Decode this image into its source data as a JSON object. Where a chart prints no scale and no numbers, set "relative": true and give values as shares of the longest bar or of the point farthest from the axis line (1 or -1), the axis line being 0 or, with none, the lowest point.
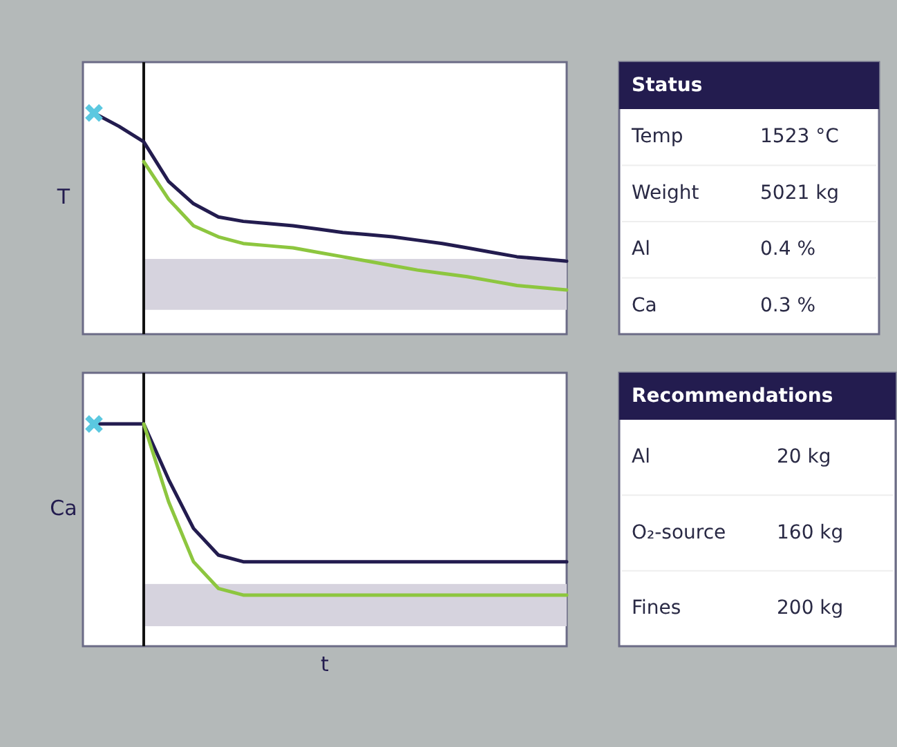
{
  "chart_data": [
    {
      "type": "line",
      "relative": true,
      "ylabel": "T",
      "categories": [
        null,
        null,
        null,
        null,
        null,
        null,
        null,
        null,
        null,
        null,
        null,
        null,
        null,
        null,
        null,
        null,
        null,
        null,
        null,
        null
      ],
      "series": [
        {
          "color": "#231c4f",
          "values": [
            1.0,
            0.94,
            0.87,
            0.69,
            0.59,
            0.53,
            0.51,
            0.5,
            0.49,
            0.475,
            0.46,
            0.45,
            0.44,
            0.425,
            0.41,
            0.39,
            0.37,
            0.35,
            0.34,
            0.33
          ]
        },
        {
          "color": "#8dc63f",
          "values": [
            null,
            null,
            0.78,
            0.61,
            0.49,
            0.44,
            0.41,
            0.4,
            0.39,
            0.37,
            0.35,
            0.33,
            0.31,
            0.29,
            0.275,
            0.26,
            0.24,
            0.22,
            0.21,
            0.2
          ]
        }
      ],
      "bands": [
        {
          "axis": "y",
          "from": 0.11,
          "to": 0.34,
          "color": "#d6d3de"
        }
      ]
    },
    {
      "type": "other",
      "title": "Status",
      "categories": [
        "Temp",
        "Weight",
        "Al",
        "Ca"
      ],
      "value_labels": [
        "1523 °C",
        "5021 kg",
        "0.4 %",
        "0.3 %"
      ]
    },
    {
      "type": "line",
      "relative": true,
      "ylabel": "Ca",
      "xlabel": "t",
      "categories": [
        null,
        null,
        null,
        null,
        null,
        null,
        null,
        null,
        null,
        null,
        null,
        null,
        null,
        null,
        null,
        null,
        null,
        null,
        null,
        null
      ],
      "series": [
        {
          "color": "#231c4f",
          "values": [
            1.0,
            1.0,
            1.0,
            0.75,
            0.53,
            0.41,
            0.38,
            0.38,
            0.38,
            0.38,
            0.38,
            0.38,
            0.38,
            0.38,
            0.38,
            0.38,
            0.38,
            0.38,
            0.38,
            0.38
          ]
        },
        {
          "color": "#8dc63f",
          "values": [
            null,
            null,
            1.0,
            0.65,
            0.38,
            0.26,
            0.23,
            0.23,
            0.23,
            0.23,
            0.23,
            0.23,
            0.23,
            0.23,
            0.23,
            0.23,
            0.23,
            0.23,
            0.23,
            0.23
          ]
        }
      ],
      "bands": [
        {
          "axis": "y",
          "from": 0.09,
          "to": 0.28,
          "color": "#d6d3de"
        }
      ]
    },
    {
      "type": "other",
      "title": "Recommendations",
      "categories": [
        "Al",
        "O₂-source",
        "Fines"
      ],
      "value_labels": [
        "20 kg",
        "160 kg",
        "200 kg"
      ]
    }
  ]
}
